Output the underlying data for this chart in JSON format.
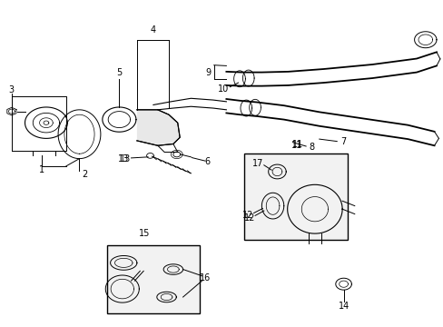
{
  "bg_color": "#ffffff",
  "line_color": "#000000",
  "gray_fill": "#f0f0f0"
}
